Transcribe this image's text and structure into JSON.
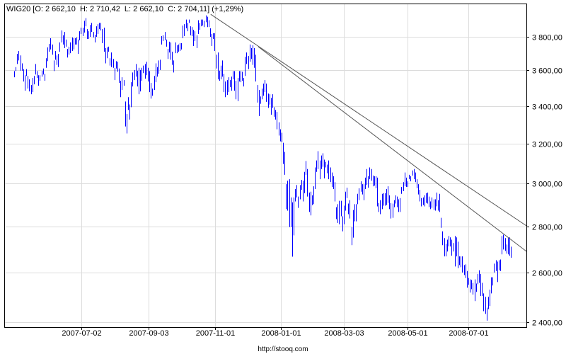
{
  "chart_data": {
    "type": "bar",
    "subtype": "ohlc-high-low",
    "title": "WIG20 [O: 2 662,10  H: 2 710,42  L: 2 662,10  C: 2 704,11] (+1,29%)",
    "y_scale": "log",
    "ylim": [
      2381,
      4009
    ],
    "y_ticks": [
      {
        "value": 2400,
        "label": "2 400,00"
      },
      {
        "value": 2600,
        "label": "2 600,00"
      },
      {
        "value": 2800,
        "label": "2 800,00"
      },
      {
        "value": 3000,
        "label": "3 000,00"
      },
      {
        "value": 3200,
        "label": "3 200,00"
      },
      {
        "value": 3400,
        "label": "3 400,00"
      },
      {
        "value": 3600,
        "label": "3 600,00"
      },
      {
        "value": 3800,
        "label": "3 800,00"
      }
    ],
    "x_unit": "trading-day index",
    "xlim": [
      -6.5,
      337.2
    ],
    "x_ticks": [
      {
        "index": 44.2,
        "label": "2007-07-02"
      },
      {
        "index": 88.5,
        "label": "2007-09-03"
      },
      {
        "index": 132.3,
        "label": "2007-11-01"
      },
      {
        "index": 175.6,
        "label": "2008-01-01"
      },
      {
        "index": 217,
        "label": "2008-03-03"
      },
      {
        "index": 259,
        "label": "2008-05-01"
      },
      {
        "index": 299,
        "label": "2008-07-01"
      }
    ],
    "grid": true,
    "bar_color": "#0000FF",
    "bars_high_low": [
      [
        3596,
        3560
      ],
      [
        3619,
        3596
      ],
      [
        3697,
        3637
      ],
      [
        3714,
        3658
      ],
      [
        3688,
        3598
      ],
      [
        3641,
        3598
      ],
      [
        3607,
        3536
      ],
      [
        3572,
        3484
      ],
      [
        3607,
        3568
      ],
      [
        3568,
        3496
      ],
      [
        3548,
        3480
      ],
      [
        3516,
        3464
      ],
      [
        3556,
        3476
      ],
      [
        3568,
        3520
      ],
      [
        3637,
        3576
      ],
      [
        3596,
        3556
      ],
      [
        3572,
        3512
      ],
      [
        3572,
        3540
      ],
      [
        3598,
        3564
      ],
      [
        3611,
        3576
      ],
      [
        3580,
        3540
      ],
      [
        3671,
        3615
      ],
      [
        3736,
        3654
      ],
      [
        3757,
        3710
      ],
      [
        3791,
        3723
      ],
      [
        3753,
        3692
      ],
      [
        3658,
        3596
      ],
      [
        3714,
        3662
      ],
      [
        3688,
        3632
      ],
      [
        3697,
        3619
      ],
      [
        3766,
        3710
      ],
      [
        3839,
        3766
      ],
      [
        3809,
        3753
      ],
      [
        3830,
        3731
      ],
      [
        3783,
        3740
      ],
      [
        3727,
        3675
      ],
      [
        3740,
        3692
      ],
      [
        3766,
        3701
      ],
      [
        3796,
        3714
      ],
      [
        3791,
        3723
      ],
      [
        3791,
        3753
      ],
      [
        3796,
        3753
      ],
      [
        3783,
        3697
      ],
      [
        3834,
        3779
      ],
      [
        3856,
        3817
      ],
      [
        3856,
        3804
      ],
      [
        3899,
        3826
      ],
      [
        3916,
        3864
      ],
      [
        3847,
        3787
      ],
      [
        3834,
        3787
      ],
      [
        3873,
        3800
      ],
      [
        3886,
        3830
      ],
      [
        3830,
        3796
      ],
      [
        3813,
        3766
      ],
      [
        3865,
        3800
      ],
      [
        3878,
        3817
      ],
      [
        3886,
        3847
      ],
      [
        3886,
        3839
      ],
      [
        3847,
        3761
      ],
      [
        3856,
        3710
      ],
      [
        3731,
        3641
      ],
      [
        3736,
        3671
      ],
      [
        3740,
        3710
      ],
      [
        3671,
        3628
      ],
      [
        3705,
        3619
      ],
      [
        3667,
        3615
      ],
      [
        3615,
        3544
      ],
      [
        3654,
        3611
      ],
      [
        3650,
        3592
      ],
      [
        3611,
        3528
      ],
      [
        3540,
        3448
      ],
      [
        3560,
        3488
      ],
      [
        3544,
        3512
      ],
      [
        3424,
        3289
      ],
      [
        3356,
        3252
      ],
      [
        3448,
        3378
      ],
      [
        3408,
        3326
      ],
      [
        3532,
        3393
      ],
      [
        3588,
        3508
      ],
      [
        3602,
        3544
      ],
      [
        3637,
        3564
      ],
      [
        3598,
        3508
      ],
      [
        3615,
        3464
      ],
      [
        3602,
        3480
      ],
      [
        3615,
        3540
      ],
      [
        3628,
        3584
      ],
      [
        3637,
        3552
      ],
      [
        3650,
        3572
      ],
      [
        3615,
        3536
      ],
      [
        3596,
        3476
      ],
      [
        3528,
        3440
      ],
      [
        3496,
        3456
      ],
      [
        3568,
        3488
      ],
      [
        3641,
        3532
      ],
      [
        3619,
        3564
      ],
      [
        3658,
        3580
      ],
      [
        3662,
        3602
      ],
      [
        3804,
        3753
      ],
      [
        3809,
        3774
      ],
      [
        3830,
        3779
      ],
      [
        3783,
        3740
      ],
      [
        3727,
        3667
      ],
      [
        3770,
        3705
      ],
      [
        3766,
        3662
      ],
      [
        3710,
        3632
      ],
      [
        3658,
        3588
      ],
      [
        3766,
        3701
      ],
      [
        3748,
        3701
      ],
      [
        3753,
        3710
      ],
      [
        3761,
        3714
      ],
      [
        3761,
        3723
      ],
      [
        3869,
        3791
      ],
      [
        3878,
        3804
      ],
      [
        3907,
        3852
      ],
      [
        3886,
        3834
      ],
      [
        3907,
        3886
      ],
      [
        3865,
        3809
      ],
      [
        3860,
        3804
      ],
      [
        3843,
        3744
      ],
      [
        3834,
        3774
      ],
      [
        3809,
        3731
      ],
      [
        3903,
        3817
      ],
      [
        3886,
        3843
      ],
      [
        3907,
        3865
      ],
      [
        3907,
        3869
      ],
      [
        3899,
        3860
      ],
      [
        3933,
        3890
      ],
      [
        3925,
        3860
      ],
      [
        3903,
        3860
      ],
      [
        3852,
        3800
      ],
      [
        3817,
        3744
      ],
      [
        3822,
        3787
      ],
      [
        3822,
        3714
      ],
      [
        3692,
        3611
      ],
      [
        3705,
        3548
      ],
      [
        3598,
        3540
      ],
      [
        3628,
        3548
      ],
      [
        3658,
        3564
      ],
      [
        3580,
        3476
      ],
      [
        3536,
        3448
      ],
      [
        3544,
        3460
      ],
      [
        3560,
        3476
      ],
      [
        3544,
        3504
      ],
      [
        3564,
        3484
      ],
      [
        3596,
        3548
      ],
      [
        3596,
        3484
      ],
      [
        3540,
        3436
      ],
      [
        3556,
        3426
      ],
      [
        3596,
        3536
      ],
      [
        3596,
        3532
      ],
      [
        3592,
        3540
      ],
      [
        3556,
        3508
      ],
      [
        3680,
        3568
      ],
      [
        3705,
        3637
      ],
      [
        3684,
        3607
      ],
      [
        3753,
        3650
      ],
      [
        3731,
        3667
      ],
      [
        3748,
        3632
      ],
      [
        3731,
        3615
      ],
      [
        3692,
        3536
      ],
      [
        3516,
        3418
      ],
      [
        3488,
        3345
      ],
      [
        3452,
        3411
      ],
      [
        3496,
        3436
      ],
      [
        3524,
        3456
      ],
      [
        3544,
        3476
      ],
      [
        3524,
        3422
      ],
      [
        3468,
        3389
      ],
      [
        3464,
        3407
      ],
      [
        3444,
        3352
      ],
      [
        3464,
        3389
      ],
      [
        3393,
        3341
      ],
      [
        3378,
        3326
      ],
      [
        3367,
        3274
      ],
      [
        3311,
        3241
      ],
      [
        3274,
        3211
      ],
      [
        3256,
        3207
      ],
      [
        3204,
        3096
      ],
      [
        3157,
        3043
      ],
      [
        2997,
        2879
      ],
      [
        3014,
        2872
      ],
      [
        3021,
        2797
      ],
      [
        2934,
        2797
      ],
      [
        2911,
        2667
      ],
      [
        2934,
        2760
      ],
      [
        2974,
        2915
      ],
      [
        2993,
        2934
      ],
      [
        2938,
        2885
      ],
      [
        2993,
        2925
      ],
      [
        3018,
        2970
      ],
      [
        3014,
        2915
      ],
      [
        3057,
        2954
      ],
      [
        3111,
        3043
      ],
      [
        3071,
        2938
      ],
      [
        2957,
        2866
      ],
      [
        2961,
        2850
      ],
      [
        2944,
        2898
      ],
      [
        2987,
        2902
      ],
      [
        3079,
        2974
      ],
      [
        3114,
        3057
      ],
      [
        3161,
        3071
      ],
      [
        3114,
        3021
      ],
      [
        3139,
        3071
      ],
      [
        3150,
        3082
      ],
      [
        3118,
        3025
      ],
      [
        3107,
        3079
      ],
      [
        3093,
        3050
      ],
      [
        3114,
        3021
      ],
      [
        3079,
        3007
      ],
      [
        3054,
        2984
      ],
      [
        3036,
        2974
      ],
      [
        3007,
        2915
      ],
      [
        2888,
        2833
      ],
      [
        2902,
        2816
      ],
      [
        2918,
        2810
      ],
      [
        2918,
        2846
      ],
      [
        2846,
        2778
      ],
      [
        2895,
        2810
      ],
      [
        2961,
        2872
      ],
      [
        2980,
        2931
      ],
      [
        2905,
        2856
      ],
      [
        2921,
        2836
      ],
      [
        2797,
        2717
      ],
      [
        2875,
        2750
      ],
      [
        2902,
        2823
      ],
      [
        2902,
        2823
      ],
      [
        2951,
        2902
      ],
      [
        2977,
        2921
      ],
      [
        3011,
        2961
      ],
      [
        2997,
        2948
      ],
      [
        2997,
        2921
      ],
      [
        3029,
        2974
      ],
      [
        3071,
        2993
      ],
      [
        3036,
        2980
      ],
      [
        3079,
        3021
      ],
      [
        3071,
        3014
      ],
      [
        3039,
        2987
      ],
      [
        3036,
        2990
      ],
      [
        3036,
        2977
      ],
      [
        3029,
        2892
      ],
      [
        2908,
        2866
      ],
      [
        2921,
        2856
      ],
      [
        2951,
        2879
      ],
      [
        2954,
        2895
      ],
      [
        2954,
        2895
      ],
      [
        2974,
        2898
      ],
      [
        2987,
        2908
      ],
      [
        2944,
        2879
      ],
      [
        2908,
        2836
      ],
      [
        2905,
        2839
      ],
      [
        2921,
        2888
      ],
      [
        2944,
        2905
      ],
      [
        2938,
        2888
      ],
      [
        2925,
        2866
      ],
      [
        2931,
        2866
      ],
      [
        2984,
        2951
      ],
      [
        3007,
        2964
      ],
      [
        3054,
        2987
      ],
      [
        3029,
        2984
      ],
      [
        3011,
        2984
      ],
      [
        3043,
        3021
      ],
      [
        3036,
        3011
      ],
      [
        3064,
        3039
      ],
      [
        3071,
        3021
      ],
      [
        3054,
        3007
      ],
      [
        3021,
        2977
      ],
      [
        2997,
        2948
      ],
      [
        2970,
        2915
      ],
      [
        2931,
        2892
      ],
      [
        2934,
        2898
      ],
      [
        2944,
        2892
      ],
      [
        2954,
        2908
      ],
      [
        2957,
        2905
      ],
      [
        2938,
        2888
      ],
      [
        2915,
        2879
      ],
      [
        2934,
        2885
      ],
      [
        2925,
        2875
      ],
      [
        2925,
        2872
      ],
      [
        2957,
        2892
      ],
      [
        2921,
        2872
      ],
      [
        2951,
        2866
      ],
      [
        2839,
        2794
      ],
      [
        2778,
        2717
      ],
      [
        2748,
        2668
      ],
      [
        2723,
        2668
      ],
      [
        2741,
        2689
      ],
      [
        2757,
        2711
      ],
      [
        2751,
        2711
      ],
      [
        2741,
        2671
      ],
      [
        2726,
        2689
      ],
      [
        2757,
        2625
      ],
      [
        2751,
        2668
      ],
      [
        2732,
        2618
      ],
      [
        2668,
        2631
      ],
      [
        2668,
        2622
      ],
      [
        2668,
        2600
      ],
      [
        2631,
        2589
      ],
      [
        2634,
        2577
      ],
      [
        2606,
        2537
      ],
      [
        2577,
        2549
      ],
      [
        2571,
        2517
      ],
      [
        2569,
        2531
      ],
      [
        2557,
        2509
      ],
      [
        2571,
        2483
      ],
      [
        2554,
        2520
      ],
      [
        2594,
        2551
      ],
      [
        2609,
        2557
      ],
      [
        2594,
        2503
      ],
      [
        2557,
        2503
      ],
      [
        2514,
        2443
      ],
      [
        2500,
        2432
      ],
      [
        2457,
        2406
      ],
      [
        2500,
        2451
      ],
      [
        2529,
        2463
      ],
      [
        2580,
        2514
      ],
      [
        2580,
        2546
      ],
      [
        2637,
        2600
      ],
      [
        2652,
        2606
      ],
      [
        2646,
        2560
      ],
      [
        2652,
        2609
      ],
      [
        2655,
        2606
      ],
      [
        2757,
        2677
      ],
      [
        2763,
        2698
      ],
      [
        2748,
        2692
      ],
      [
        2720,
        2680
      ],
      [
        2748,
        2677
      ],
      [
        2751,
        2671
      ],
      [
        2710.42,
        2662.1
      ]
    ],
    "trendlines": [
      {
        "from": {
          "index": 129.4,
          "price": 3940
        },
        "to": {
          "index": 337.2,
          "price": 2803
        },
        "color": "#555555"
      },
      {
        "from": {
          "index": 160.7,
          "price": 3740
        },
        "to": {
          "index": 337.2,
          "price": 2690
        },
        "color": "#555555"
      }
    ]
  },
  "footer": {
    "source": "http://stooq.com"
  }
}
